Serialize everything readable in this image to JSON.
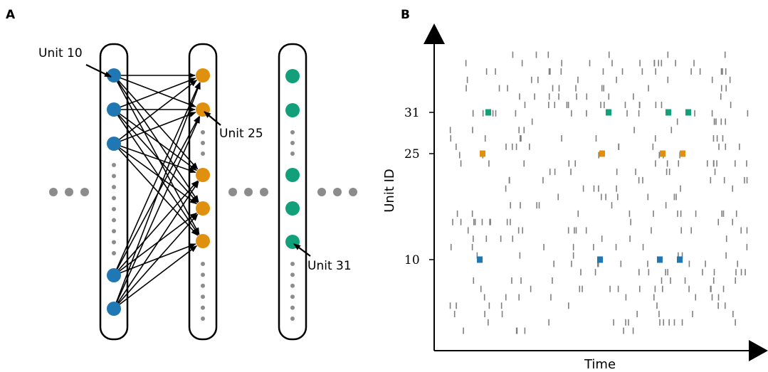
{
  "panel_a": {
    "letter": "A",
    "annotations": {
      "unit10": "Unit 10",
      "unit25": "Unit 25",
      "unit31": "Unit 31"
    },
    "colors": {
      "layer1": "#1f77b4",
      "layer2": "#e0900f",
      "layer3": "#12a07a",
      "ellipsis": "#8c8c8c"
    }
  },
  "panel_b": {
    "letter": "B",
    "x_label": "Time",
    "y_label": "Unit ID",
    "y_ticks": [
      "10",
      "25",
      "31"
    ]
  },
  "chart_data": {
    "type": "scatter",
    "xlabel": "Time",
    "ylabel": "Unit ID",
    "y_ticks": [
      10,
      25,
      31
    ],
    "highlighted_spikes": [
      {
        "unit": 10,
        "color": "#1f77b4",
        "count": 4
      },
      {
        "unit": 25,
        "color": "#e0900f",
        "count": 4
      },
      {
        "unit": 31,
        "color": "#12a07a",
        "count": 4
      }
    ],
    "background_spike_color": "#7f7f7f"
  }
}
